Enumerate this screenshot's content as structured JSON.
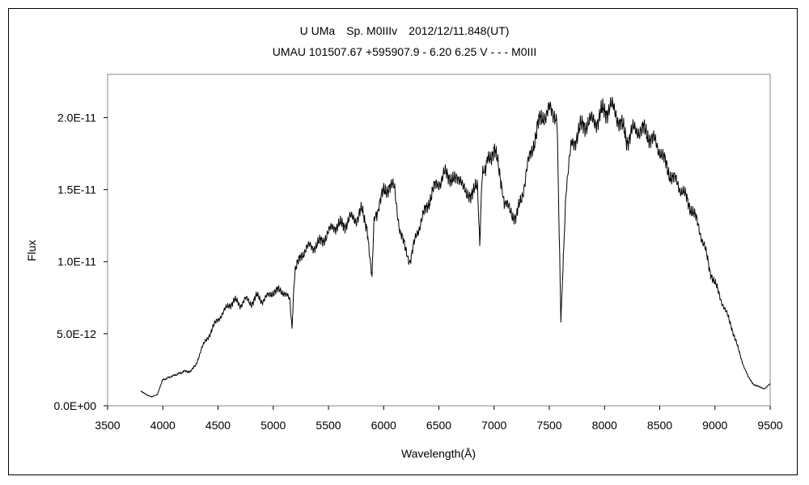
{
  "chart_data": {
    "type": "line",
    "title": "U UMa　Sp. M0IIIv　2012/12/11.848(UT)",
    "subtitle": "UMAU 101507.67 +595907.9 - 6.20 6.25 V - - - M0III",
    "xlabel": "Wavelength(Å)",
    "ylabel": "Flux",
    "xlim": [
      3500,
      9500
    ],
    "ylim": [
      0,
      2.3e-11
    ],
    "x_ticks": [
      3500,
      4000,
      4500,
      5000,
      5500,
      6000,
      6500,
      7000,
      7500,
      8000,
      8500,
      9000,
      9500
    ],
    "x_tick_labels": [
      "3500",
      "4000",
      "4500",
      "5000",
      "5500",
      "6000",
      "6500",
      "7000",
      "7500",
      "8000",
      "8500",
      "9000",
      "9500"
    ],
    "y_ticks": [
      0,
      5e-12,
      1e-11,
      1.5e-11,
      2e-11
    ],
    "y_tick_labels": [
      "0.0E+00",
      "5.0E-12",
      "1.0E-11",
      "1.5E-11",
      "2.0E-11"
    ],
    "grid": false,
    "legend": "none",
    "line_color": "#000000",
    "series": [
      {
        "x": [
          3800,
          3850,
          3900,
          3950,
          4000,
          4100,
          4200,
          4250,
          4300,
          4350,
          4400,
          4450,
          4500,
          4550,
          4600,
          4650,
          4700,
          4750,
          4800,
          4850,
          4900,
          4950,
          5000,
          5050,
          5100,
          5150,
          5170,
          5190,
          5200,
          5250,
          5300,
          5350,
          5400,
          5450,
          5500,
          5550,
          5600,
          5650,
          5700,
          5750,
          5800,
          5850,
          5880,
          5895,
          5910,
          5950,
          6000,
          6050,
          6100,
          6150,
          6200,
          6230,
          6250,
          6300,
          6350,
          6400,
          6450,
          6500,
          6550,
          6600,
          6650,
          6700,
          6750,
          6800,
          6850,
          6870,
          6890,
          6910,
          6950,
          7000,
          7050,
          7080,
          7100,
          7150,
          7200,
          7250,
          7300,
          7350,
          7400,
          7450,
          7500,
          7550,
          7570,
          7590,
          7605,
          7620,
          7650,
          7700,
          7750,
          7800,
          7850,
          7900,
          7950,
          8000,
          8050,
          8100,
          8150,
          8200,
          8250,
          8300,
          8350,
          8400,
          8450,
          8500,
          8550,
          8600,
          8650,
          8700,
          8750,
          8800,
          8850,
          8900,
          8950,
          9000,
          9050,
          9100,
          9150,
          9200,
          9250,
          9300,
          9350,
          9400,
          9450,
          9500
        ],
        "y": [
          1e-12,
          8e-13,
          6e-13,
          8e-13,
          1.8e-12,
          2.1e-12,
          2.4e-12,
          2.4e-12,
          2.8e-12,
          4e-12,
          4.6e-12,
          5.4e-12,
          6e-12,
          6.5e-12,
          7e-12,
          7.3e-12,
          7e-12,
          7.4e-12,
          7.1e-12,
          7.6e-12,
          7.3e-12,
          7.6e-12,
          7.9e-12,
          8e-12,
          7.9e-12,
          7.3e-12,
          5.5e-12,
          8.5e-12,
          9.5e-12,
          1.03e-11,
          1.1e-11,
          1.1e-11,
          1.12e-11,
          1.15e-11,
          1.2e-11,
          1.25e-11,
          1.25e-11,
          1.26e-11,
          1.3e-11,
          1.3e-11,
          1.35e-11,
          1.25e-11,
          1e-11,
          9e-12,
          1.25e-11,
          1.38e-11,
          1.48e-11,
          1.53e-11,
          1.5e-11,
          1.2e-11,
          1.08e-11,
          1.01e-11,
          1.03e-11,
          1.2e-11,
          1.3e-11,
          1.4e-11,
          1.5e-11,
          1.55e-11,
          1.6e-11,
          1.6e-11,
          1.55e-11,
          1.6e-11,
          1.43e-11,
          1.5e-11,
          1.5e-11,
          1.15e-11,
          1.55e-11,
          1.65e-11,
          1.7e-11,
          1.8e-11,
          1.6e-11,
          1.48e-11,
          1.4e-11,
          1.35e-11,
          1.3e-11,
          1.45e-11,
          1.65e-11,
          1.8e-11,
          1.95e-11,
          2.02e-11,
          2.04e-11,
          2.04e-11,
          1.95e-11,
          1.2e-11,
          6e-12,
          9e-12,
          1.5e-11,
          1.8e-11,
          1.88e-11,
          1.94e-11,
          1.97e-11,
          1.97e-11,
          2e-11,
          2.05e-11,
          2.07e-11,
          2.04e-11,
          1.95e-11,
          1.85e-11,
          1.9e-11,
          1.92e-11,
          1.91e-11,
          1.88e-11,
          1.83e-11,
          1.78e-11,
          1.68e-11,
          1.6e-11,
          1.55e-11,
          1.5e-11,
          1.42e-11,
          1.35e-11,
          1.25e-11,
          1.12e-11,
          9.5e-12,
          8.5e-12,
          7.5e-12,
          6.5e-12,
          5.5e-12,
          4.2e-12,
          3e-12,
          2e-12,
          1.5e-12,
          1.3e-12,
          1.2e-12,
          1.5e-12
        ]
      }
    ]
  }
}
